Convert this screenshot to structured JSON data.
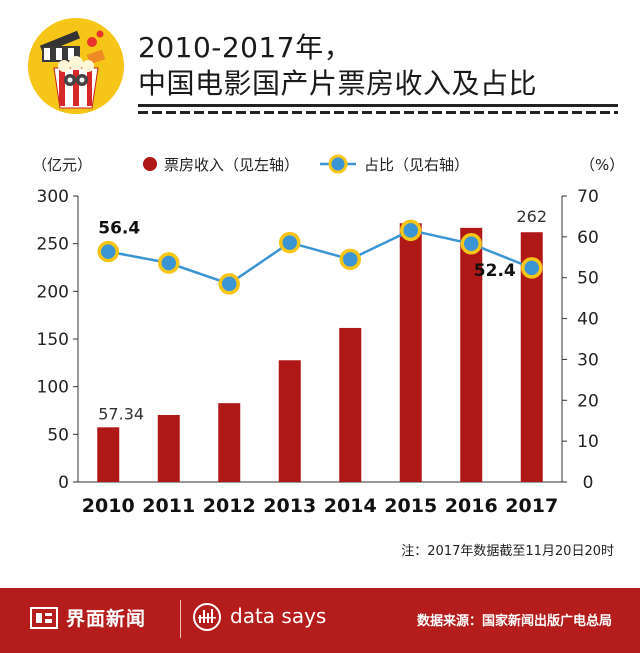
{
  "title": {
    "line1": "2010-2017年，",
    "line2": "中国电影国产片票房收入及占比"
  },
  "colors": {
    "bar": "#b01717",
    "line": "#3b95d4",
    "marker_fill": "#3b95d4",
    "marker_ring": "#f5c518",
    "footer": "#b51c1c"
  },
  "chart_data": {
    "type": "bar",
    "categories": [
      "2010",
      "2011",
      "2012",
      "2013",
      "2014",
      "2015",
      "2016",
      "2017"
    ],
    "series": [
      {
        "name": "票房收入（见左轴）",
        "type": "bar",
        "axis": "left",
        "values": [
          57.34,
          70.3,
          82.7,
          127.7,
          161.6,
          271.4,
          266.6,
          262
        ]
      },
      {
        "name": "占比（见右轴）",
        "type": "line",
        "axis": "right",
        "values": [
          56.4,
          53.6,
          48.5,
          58.6,
          54.5,
          61.6,
          58.3,
          52.4
        ]
      }
    ],
    "left_axis": {
      "label": "（亿元）",
      "range": [
        0,
        300
      ],
      "ticks": [
        "0",
        "50",
        "100",
        "150",
        "200",
        "250",
        "300"
      ]
    },
    "right_axis": {
      "label": "（%）",
      "range": [
        0,
        70
      ],
      "ticks": [
        "0",
        "10",
        "20",
        "30",
        "40",
        "50",
        "60",
        "70"
      ]
    },
    "data_labels": {
      "bar_first": "57.34",
      "bar_last": "262",
      "line_first": "56.4",
      "line_last": "52.4"
    },
    "legend_position": "top",
    "grid": false
  },
  "note": "注：2017年数据截至11月20日20时",
  "footer": {
    "brand": "界面新闻",
    "data_says": "data says",
    "source": "数据来源：国家新闻出版广电总局"
  }
}
